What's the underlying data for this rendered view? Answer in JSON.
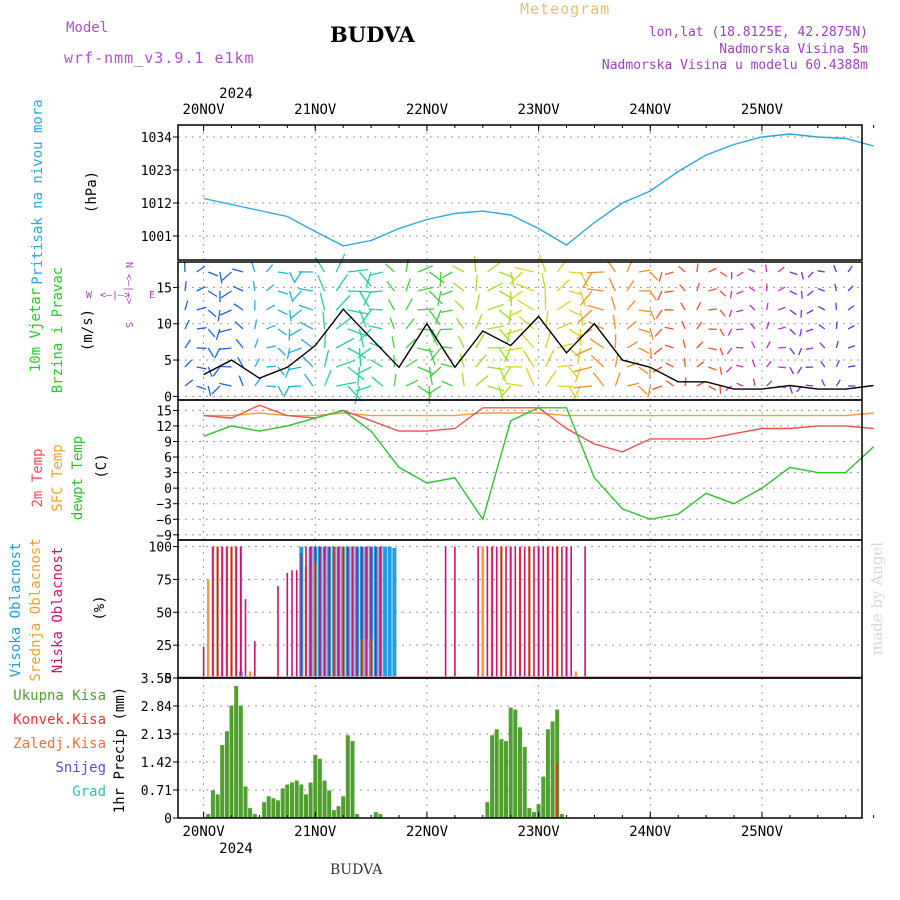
{
  "header": {
    "model_label": "Model",
    "model_name": "wrf-nmm_v3.9.1 e1km",
    "location": "BUDVA",
    "meteogram": "Meteogram",
    "lonlat": "lon,lat (18.8125E, 42.2875N)",
    "elevation": "Nadmorska Visina 5m",
    "model_elevation": "Nadmorska Visina u modelu 60.4388m"
  },
  "footer": {
    "location": "BUDVA",
    "made_by": "made by Angel"
  },
  "x_axis": {
    "year": "2024",
    "day_labels": [
      "20NOV",
      "21NOV",
      "22NOV",
      "23NOV",
      "24NOV",
      "25NOV"
    ]
  },
  "colors": {
    "pressure": "#2aa8e0",
    "temp2m": "#f05050",
    "sfc": "#f0a030",
    "dewpt": "#30c030",
    "high_cloud": "#20a0e0",
    "mid_cloud": "#f0a030",
    "low_cloud": "#d01070",
    "total_precip": "#50a030",
    "conv_precip": "#f03030",
    "frz_precip": "#f07030",
    "snow": "#5050e0",
    "hail": "#30c0c0",
    "wind_label": "#20d020",
    "legend": "#b040c0"
  },
  "chart_data": [
    {
      "type": "line",
      "panel": "pressure",
      "ylabel_main": "Pritisak na nivou mora",
      "unit": "(hPa)",
      "yticks": [
        1001,
        1012,
        1023,
        1034
      ],
      "ylim": [
        993,
        1038
      ],
      "x_hours": [
        0,
        6,
        12,
        18,
        24,
        30,
        36,
        42,
        48,
        54,
        60,
        66,
        72,
        78,
        84,
        90,
        96,
        102,
        108,
        114,
        120,
        126,
        132,
        138,
        144
      ],
      "series": [
        {
          "values": [
            1013.5,
            1011.5,
            1009.5,
            1007.5,
            1002.5,
            997.7,
            999.5,
            1003.5,
            1006.5,
            1008.5,
            1009.3,
            1008,
            1003.5,
            998,
            1005.5,
            1012,
            1016,
            1022.5,
            1028,
            1031.5,
            1034,
            1035,
            1034,
            1033.5,
            1031
          ]
        }
      ]
    },
    {
      "type": "line",
      "panel": "wind",
      "ylabel_main": "10m Vjetar",
      "ylabel_sub": "Brzina i Pravac",
      "unit": "(m/s)",
      "yticks": [
        0,
        5,
        10,
        15
      ],
      "ylim": [
        -0.5,
        18.5
      ],
      "compass": {
        "n": "N",
        "s": "S",
        "e": "E",
        "w": "W"
      },
      "x_hours": [
        0,
        6,
        12,
        18,
        24,
        30,
        36,
        42,
        48,
        54,
        60,
        66,
        72,
        78,
        84,
        90,
        96,
        102,
        108,
        114,
        120,
        126,
        132,
        138,
        144
      ],
      "series": [
        {
          "name": "speed",
          "values": [
            3,
            5,
            2.5,
            4,
            7,
            12,
            8,
            4,
            10,
            4,
            9,
            7,
            11,
            6,
            10,
            5,
            4,
            2,
            2,
            1,
            1,
            1.5,
            1,
            1,
            1.5
          ]
        }
      ]
    },
    {
      "type": "line",
      "panel": "temperature",
      "ylabels": [
        "2m Temp",
        "SFC Temp",
        "dewpt Temp"
      ],
      "unit": "(C)",
      "yticks": [
        -9,
        -6,
        -3,
        0,
        3,
        6,
        9,
        12,
        15
      ],
      "ylim": [
        -10,
        17
      ],
      "x_hours": [
        0,
        6,
        12,
        18,
        24,
        30,
        36,
        42,
        48,
        54,
        60,
        66,
        72,
        78,
        84,
        90,
        96,
        102,
        108,
        114,
        120,
        126,
        132,
        138,
        144
      ],
      "series": [
        {
          "name": "2m Temp",
          "values": [
            14,
            13.5,
            16,
            14,
            13.5,
            15,
            13,
            11,
            11,
            11.5,
            15.5,
            15.5,
            15.5,
            11.5,
            8.5,
            7,
            9.5,
            9.5,
            9.5,
            10.5,
            11.5,
            11.5,
            12,
            12,
            11.5
          ]
        },
        {
          "name": "SFC Temp",
          "values": [
            14,
            14,
            14.5,
            14,
            14,
            14.5,
            14,
            14,
            14,
            14,
            14.5,
            14.5,
            14.5,
            14,
            14,
            14,
            14,
            14,
            14,
            14,
            14,
            14,
            14,
            14,
            14.5
          ]
        },
        {
          "name": "dewpt Temp",
          "values": [
            10,
            12,
            11,
            12,
            13.5,
            15,
            11,
            4,
            1,
            2,
            -6,
            13,
            15.5,
            15.5,
            2,
            -4,
            -6,
            -5,
            -1,
            -3,
            0,
            4,
            3,
            3,
            8
          ]
        }
      ]
    },
    {
      "type": "bar",
      "panel": "clouds",
      "ylabels": [
        "Visoka Oblacnost",
        "Srednja Oblacnost",
        "Niska Oblacnost"
      ],
      "unit": "(%)",
      "yticks": [
        0,
        25,
        50,
        75,
        100
      ],
      "ylim": [
        0,
        105
      ],
      "series": [
        {
          "name": "Visoka Oblacnost",
          "x_hours": [
            8,
            21,
            23,
            24,
            25,
            26,
            27,
            28,
            29,
            30,
            31,
            32,
            33,
            34,
            35,
            36,
            37,
            38,
            39,
            40,
            41
          ],
          "values": [
            5,
            100,
            100,
            100,
            100,
            100,
            100,
            100,
            100,
            100,
            100,
            100,
            100,
            100,
            100,
            100,
            100,
            100,
            100,
            100,
            99
          ]
        },
        {
          "name": "Srednja Oblacnost",
          "x_hours": [
            1,
            2,
            3,
            4,
            5,
            6,
            7,
            8,
            10,
            22,
            24,
            26,
            28,
            30,
            32,
            34,
            35,
            36,
            60,
            62,
            64,
            66,
            68,
            70,
            72,
            74,
            76,
            78,
            80
          ],
          "values": [
            75,
            100,
            100,
            100,
            100,
            100,
            100,
            100,
            5,
            85,
            88,
            90,
            100,
            100,
            100,
            30,
            30,
            30,
            100,
            100,
            100,
            100,
            100,
            100,
            100,
            100,
            100,
            100,
            5
          ]
        },
        {
          "name": "Niska Oblacnost",
          "x_hours": [
            0,
            2,
            3,
            4,
            5,
            6,
            7,
            8,
            9,
            11,
            16,
            18,
            19,
            20,
            21,
            22,
            23,
            24,
            25,
            26,
            27,
            28,
            29,
            30,
            31,
            32,
            33,
            34,
            35,
            36,
            37,
            38,
            52,
            54,
            59,
            61,
            62,
            63,
            64,
            65,
            66,
            67,
            68,
            69,
            70,
            71,
            72,
            73,
            74,
            75,
            76,
            77,
            78,
            79,
            82
          ],
          "values": [
            24,
            100,
            100,
            100,
            100,
            100,
            100,
            100,
            60,
            28,
            70,
            80,
            82,
            82,
            95,
            100,
            100,
            100,
            100,
            100,
            100,
            100,
            100,
            100,
            100,
            100,
            100,
            100,
            100,
            100,
            100,
            100,
            100,
            100,
            100,
            100,
            100,
            100,
            100,
            100,
            100,
            100,
            100,
            100,
            100,
            100,
            100,
            100,
            100,
            100,
            100,
            100,
            100,
            100,
            100
          ]
        }
      ]
    },
    {
      "type": "bar",
      "panel": "precip",
      "ylabels": [
        "Ukupna Kisa",
        "Konvek.Kisa",
        "Zaledj.Kisa",
        "Snijeg",
        "Grad"
      ],
      "unit": "1hr Precip (mm)",
      "yticks": [
        0,
        0.71,
        1.42,
        2.13,
        2.84,
        3.55
      ],
      "ylim": [
        0,
        3.55
      ],
      "series": [
        {
          "name": "Ukupna Kisa",
          "x_hours": [
            1,
            2,
            3,
            4,
            5,
            6,
            7,
            8,
            9,
            10,
            11,
            13,
            14,
            15,
            16,
            17,
            18,
            19,
            20,
            21,
            22,
            23,
            24,
            25,
            26,
            27,
            28,
            29,
            30,
            31,
            32,
            33,
            37,
            38,
            61,
            62,
            63,
            64,
            65,
            66,
            67,
            68,
            69,
            70,
            71,
            72,
            73,
            74,
            75,
            76,
            77
          ],
          "values": [
            0.1,
            0.7,
            0.6,
            1.85,
            2.2,
            2.85,
            3.35,
            2.85,
            0.8,
            0.25,
            0.1,
            0.4,
            0.55,
            0.5,
            0.45,
            0.75,
            0.85,
            0.9,
            0.95,
            0.85,
            0.6,
            0.9,
            1.6,
            1.5,
            0.95,
            0.7,
            0.2,
            0.3,
            0.55,
            2.1,
            1.95,
            0.1,
            0.15,
            0.1,
            0.4,
            2.1,
            2.25,
            2.0,
            1.95,
            2.8,
            2.75,
            2.3,
            1.8,
            0.25,
            0.15,
            0.35,
            1.05,
            2.25,
            2.45,
            2.75,
            0.1
          ]
        },
        {
          "name": "Konvek.Kisa",
          "x_hours": [
            76
          ],
          "values": [
            1.4
          ]
        }
      ]
    }
  ]
}
